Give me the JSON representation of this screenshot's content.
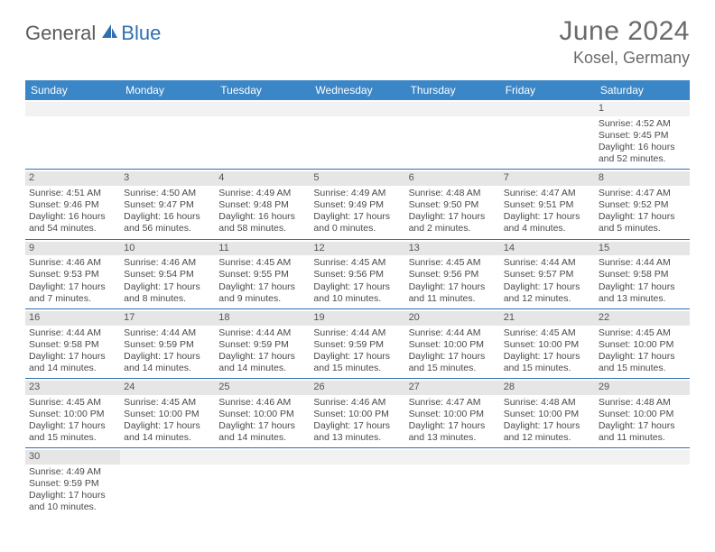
{
  "brand": {
    "part1": "General",
    "part2": "Blue"
  },
  "title": {
    "month": "June 2024",
    "location": "Kosel, Germany"
  },
  "colors": {
    "header_bg": "#3b86c6",
    "header_text": "#ffffff",
    "row_divider": "#2f6fb0",
    "daynum_bg": "#e6e6e6",
    "body_text": "#4a4a4a",
    "title_text": "#6a6a6a",
    "brand_gray": "#5a5a5a",
    "brand_blue": "#2f6fb0"
  },
  "typography": {
    "title_fontsize": 30,
    "location_fontsize": 18,
    "header_fontsize": 12,
    "cell_fontsize": 10.5
  },
  "weekdays": [
    "Sunday",
    "Monday",
    "Tuesday",
    "Wednesday",
    "Thursday",
    "Friday",
    "Saturday"
  ],
  "weeks": [
    [
      {
        "n": "",
        "empty": true
      },
      {
        "n": "",
        "empty": true
      },
      {
        "n": "",
        "empty": true
      },
      {
        "n": "",
        "empty": true
      },
      {
        "n": "",
        "empty": true
      },
      {
        "n": "",
        "empty": true
      },
      {
        "n": "1",
        "sr": "Sunrise: 4:52 AM",
        "ss": "Sunset: 9:45 PM",
        "d1": "Daylight: 16 hours",
        "d2": "and 52 minutes."
      }
    ],
    [
      {
        "n": "2",
        "sr": "Sunrise: 4:51 AM",
        "ss": "Sunset: 9:46 PM",
        "d1": "Daylight: 16 hours",
        "d2": "and 54 minutes."
      },
      {
        "n": "3",
        "sr": "Sunrise: 4:50 AM",
        "ss": "Sunset: 9:47 PM",
        "d1": "Daylight: 16 hours",
        "d2": "and 56 minutes."
      },
      {
        "n": "4",
        "sr": "Sunrise: 4:49 AM",
        "ss": "Sunset: 9:48 PM",
        "d1": "Daylight: 16 hours",
        "d2": "and 58 minutes."
      },
      {
        "n": "5",
        "sr": "Sunrise: 4:49 AM",
        "ss": "Sunset: 9:49 PM",
        "d1": "Daylight: 17 hours",
        "d2": "and 0 minutes."
      },
      {
        "n": "6",
        "sr": "Sunrise: 4:48 AM",
        "ss": "Sunset: 9:50 PM",
        "d1": "Daylight: 17 hours",
        "d2": "and 2 minutes."
      },
      {
        "n": "7",
        "sr": "Sunrise: 4:47 AM",
        "ss": "Sunset: 9:51 PM",
        "d1": "Daylight: 17 hours",
        "d2": "and 4 minutes."
      },
      {
        "n": "8",
        "sr": "Sunrise: 4:47 AM",
        "ss": "Sunset: 9:52 PM",
        "d1": "Daylight: 17 hours",
        "d2": "and 5 minutes."
      }
    ],
    [
      {
        "n": "9",
        "sr": "Sunrise: 4:46 AM",
        "ss": "Sunset: 9:53 PM",
        "d1": "Daylight: 17 hours",
        "d2": "and 7 minutes."
      },
      {
        "n": "10",
        "sr": "Sunrise: 4:46 AM",
        "ss": "Sunset: 9:54 PM",
        "d1": "Daylight: 17 hours",
        "d2": "and 8 minutes."
      },
      {
        "n": "11",
        "sr": "Sunrise: 4:45 AM",
        "ss": "Sunset: 9:55 PM",
        "d1": "Daylight: 17 hours",
        "d2": "and 9 minutes."
      },
      {
        "n": "12",
        "sr": "Sunrise: 4:45 AM",
        "ss": "Sunset: 9:56 PM",
        "d1": "Daylight: 17 hours",
        "d2": "and 10 minutes."
      },
      {
        "n": "13",
        "sr": "Sunrise: 4:45 AM",
        "ss": "Sunset: 9:56 PM",
        "d1": "Daylight: 17 hours",
        "d2": "and 11 minutes."
      },
      {
        "n": "14",
        "sr": "Sunrise: 4:44 AM",
        "ss": "Sunset: 9:57 PM",
        "d1": "Daylight: 17 hours",
        "d2": "and 12 minutes."
      },
      {
        "n": "15",
        "sr": "Sunrise: 4:44 AM",
        "ss": "Sunset: 9:58 PM",
        "d1": "Daylight: 17 hours",
        "d2": "and 13 minutes."
      }
    ],
    [
      {
        "n": "16",
        "sr": "Sunrise: 4:44 AM",
        "ss": "Sunset: 9:58 PM",
        "d1": "Daylight: 17 hours",
        "d2": "and 14 minutes."
      },
      {
        "n": "17",
        "sr": "Sunrise: 4:44 AM",
        "ss": "Sunset: 9:59 PM",
        "d1": "Daylight: 17 hours",
        "d2": "and 14 minutes."
      },
      {
        "n": "18",
        "sr": "Sunrise: 4:44 AM",
        "ss": "Sunset: 9:59 PM",
        "d1": "Daylight: 17 hours",
        "d2": "and 14 minutes."
      },
      {
        "n": "19",
        "sr": "Sunrise: 4:44 AM",
        "ss": "Sunset: 9:59 PM",
        "d1": "Daylight: 17 hours",
        "d2": "and 15 minutes."
      },
      {
        "n": "20",
        "sr": "Sunrise: 4:44 AM",
        "ss": "Sunset: 10:00 PM",
        "d1": "Daylight: 17 hours",
        "d2": "and 15 minutes."
      },
      {
        "n": "21",
        "sr": "Sunrise: 4:45 AM",
        "ss": "Sunset: 10:00 PM",
        "d1": "Daylight: 17 hours",
        "d2": "and 15 minutes."
      },
      {
        "n": "22",
        "sr": "Sunrise: 4:45 AM",
        "ss": "Sunset: 10:00 PM",
        "d1": "Daylight: 17 hours",
        "d2": "and 15 minutes."
      }
    ],
    [
      {
        "n": "23",
        "sr": "Sunrise: 4:45 AM",
        "ss": "Sunset: 10:00 PM",
        "d1": "Daylight: 17 hours",
        "d2": "and 15 minutes."
      },
      {
        "n": "24",
        "sr": "Sunrise: 4:45 AM",
        "ss": "Sunset: 10:00 PM",
        "d1": "Daylight: 17 hours",
        "d2": "and 14 minutes."
      },
      {
        "n": "25",
        "sr": "Sunrise: 4:46 AM",
        "ss": "Sunset: 10:00 PM",
        "d1": "Daylight: 17 hours",
        "d2": "and 14 minutes."
      },
      {
        "n": "26",
        "sr": "Sunrise: 4:46 AM",
        "ss": "Sunset: 10:00 PM",
        "d1": "Daylight: 17 hours",
        "d2": "and 13 minutes."
      },
      {
        "n": "27",
        "sr": "Sunrise: 4:47 AM",
        "ss": "Sunset: 10:00 PM",
        "d1": "Daylight: 17 hours",
        "d2": "and 13 minutes."
      },
      {
        "n": "28",
        "sr": "Sunrise: 4:48 AM",
        "ss": "Sunset: 10:00 PM",
        "d1": "Daylight: 17 hours",
        "d2": "and 12 minutes."
      },
      {
        "n": "29",
        "sr": "Sunrise: 4:48 AM",
        "ss": "Sunset: 10:00 PM",
        "d1": "Daylight: 17 hours",
        "d2": "and 11 minutes."
      }
    ],
    [
      {
        "n": "30",
        "sr": "Sunrise: 4:49 AM",
        "ss": "Sunset: 9:59 PM",
        "d1": "Daylight: 17 hours",
        "d2": "and 10 minutes."
      },
      {
        "n": "",
        "empty": true
      },
      {
        "n": "",
        "empty": true
      },
      {
        "n": "",
        "empty": true
      },
      {
        "n": "",
        "empty": true
      },
      {
        "n": "",
        "empty": true
      },
      {
        "n": "",
        "empty": true
      }
    ]
  ]
}
